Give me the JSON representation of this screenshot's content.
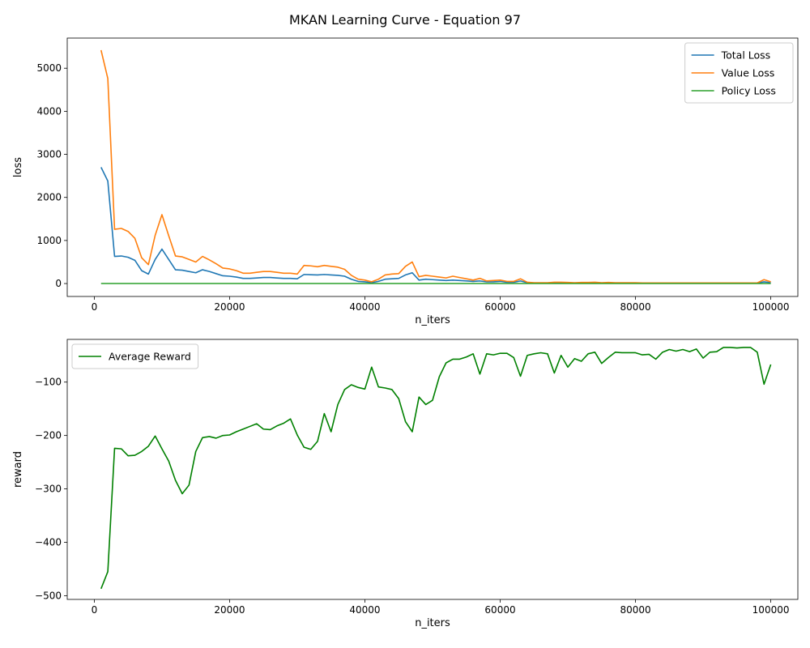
{
  "figure": {
    "title": "MKAN Learning Curve - Equation 97"
  },
  "chart_data": [
    {
      "type": "line",
      "title": "",
      "xlabel": "n_iters",
      "ylabel": "loss",
      "xlim": [
        -4000,
        104000
      ],
      "ylim": [
        -300,
        5700
      ],
      "xticks": [
        0,
        20000,
        40000,
        60000,
        80000,
        100000
      ],
      "xtick_labels": [
        "0",
        "20000",
        "40000",
        "60000",
        "80000",
        "100000"
      ],
      "yticks": [
        0,
        1000,
        2000,
        3000,
        4000,
        5000
      ],
      "ytick_labels": [
        "0",
        "1000",
        "2000",
        "3000",
        "4000",
        "5000"
      ],
      "grid": false,
      "legend_position": "top-right",
      "x": [
        1000,
        2000,
        3000,
        4000,
        5000,
        6000,
        7000,
        8000,
        9000,
        10000,
        11000,
        12000,
        13000,
        14000,
        15000,
        16000,
        17000,
        18000,
        19000,
        20000,
        21000,
        22000,
        23000,
        24000,
        25000,
        26000,
        27000,
        28000,
        29000,
        30000,
        31000,
        32000,
        33000,
        34000,
        35000,
        36000,
        37000,
        38000,
        39000,
        40000,
        41000,
        42000,
        43000,
        44000,
        45000,
        46000,
        47000,
        48000,
        49000,
        50000,
        51000,
        52000,
        53000,
        54000,
        55000,
        56000,
        57000,
        58000,
        59000,
        60000,
        61000,
        62000,
        63000,
        64000,
        65000,
        66000,
        67000,
        68000,
        69000,
        70000,
        71000,
        72000,
        73000,
        74000,
        75000,
        76000,
        77000,
        78000,
        79000,
        80000,
        81000,
        82000,
        83000,
        84000,
        85000,
        86000,
        87000,
        88000,
        89000,
        90000,
        91000,
        92000,
        93000,
        94000,
        95000,
        96000,
        97000,
        98000,
        99000,
        100000
      ],
      "series": [
        {
          "name": "Total Loss",
          "color": "#1f77b4",
          "values": [
            2700,
            2380,
            630,
            640,
            610,
            540,
            300,
            220,
            560,
            800,
            560,
            320,
            310,
            280,
            250,
            320,
            280,
            230,
            180,
            170,
            150,
            120,
            120,
            130,
            140,
            140,
            130,
            120,
            120,
            110,
            210,
            205,
            200,
            210,
            200,
            190,
            170,
            100,
            50,
            40,
            20,
            50,
            100,
            110,
            120,
            200,
            250,
            80,
            100,
            90,
            80,
            70,
            80,
            70,
            60,
            50,
            60,
            40,
            40,
            50,
            30,
            30,
            60,
            20,
            15,
            15,
            15,
            20,
            20,
            15,
            15,
            15,
            15,
            20,
            15,
            15,
            15,
            15,
            15,
            15,
            10,
            10,
            10,
            10,
            10,
            10,
            10,
            10,
            10,
            10,
            10,
            10,
            10,
            10,
            10,
            10,
            10,
            10,
            40,
            20
          ]
        },
        {
          "name": "Value Loss",
          "color": "#ff7f0e",
          "values": [
            5420,
            4760,
            1260,
            1280,
            1210,
            1050,
            600,
            440,
            1120,
            1600,
            1110,
            640,
            620,
            560,
            500,
            630,
            550,
            460,
            360,
            340,
            300,
            240,
            240,
            260,
            280,
            280,
            260,
            240,
            240,
            220,
            420,
            410,
            390,
            420,
            400,
            380,
            330,
            190,
            100,
            80,
            40,
            100,
            200,
            220,
            230,
            400,
            500,
            160,
            190,
            170,
            150,
            130,
            170,
            140,
            110,
            80,
            120,
            60,
            70,
            80,
            50,
            50,
            110,
            30,
            20,
            20,
            20,
            30,
            30,
            25,
            20,
            25,
            25,
            30,
            20,
            25,
            20,
            20,
            20,
            20,
            15,
            15,
            15,
            15,
            15,
            15,
            15,
            15,
            15,
            15,
            15,
            15,
            15,
            15,
            15,
            15,
            15,
            15,
            90,
            40
          ]
        },
        {
          "name": "Policy Loss",
          "color": "#2ca02c",
          "values": [
            1,
            1,
            1,
            1,
            1,
            1,
            1,
            1,
            1,
            1,
            1,
            1,
            1,
            1,
            1,
            1,
            1,
            1,
            1,
            1,
            1,
            1,
            1,
            1,
            1,
            1,
            1,
            1,
            1,
            1,
            1,
            1,
            1,
            1,
            1,
            1,
            1,
            1,
            1,
            1,
            1,
            1,
            1,
            1,
            1,
            1,
            1,
            1,
            1,
            1,
            1,
            1,
            1,
            1,
            1,
            1,
            1,
            1,
            1,
            1,
            1,
            1,
            1,
            1,
            1,
            1,
            1,
            1,
            1,
            1,
            1,
            1,
            1,
            1,
            1,
            1,
            1,
            1,
            1,
            1,
            1,
            1,
            1,
            1,
            1,
            1,
            1,
            1,
            1,
            1,
            1,
            1,
            1,
            1,
            1,
            1,
            1,
            1,
            1,
            1
          ]
        }
      ]
    },
    {
      "type": "line",
      "title": "",
      "xlabel": "n_iters",
      "ylabel": "reward",
      "xlim": [
        -4000,
        104000
      ],
      "ylim": [
        -507,
        -20
      ],
      "xticks": [
        0,
        20000,
        40000,
        60000,
        80000,
        100000
      ],
      "xtick_labels": [
        "0",
        "20000",
        "40000",
        "60000",
        "80000",
        "100000"
      ],
      "yticks": [
        -500,
        -400,
        -300,
        -200,
        -100
      ],
      "ytick_labels": [
        "−500",
        "−400",
        "−300",
        "−200",
        "−100"
      ],
      "grid": false,
      "legend_position": "top-left",
      "x": [
        1000,
        2000,
        3000,
        4000,
        5000,
        6000,
        7000,
        8000,
        9000,
        10000,
        11000,
        12000,
        13000,
        14000,
        15000,
        16000,
        17000,
        18000,
        19000,
        20000,
        21000,
        22000,
        23000,
        24000,
        25000,
        26000,
        27000,
        28000,
        29000,
        30000,
        31000,
        32000,
        33000,
        34000,
        35000,
        36000,
        37000,
        38000,
        39000,
        40000,
        41000,
        42000,
        43000,
        44000,
        45000,
        46000,
        47000,
        48000,
        49000,
        50000,
        51000,
        52000,
        53000,
        54000,
        55000,
        56000,
        57000,
        58000,
        59000,
        60000,
        61000,
        62000,
        63000,
        64000,
        65000,
        66000,
        67000,
        68000,
        69000,
        70000,
        71000,
        72000,
        73000,
        74000,
        75000,
        76000,
        77000,
        78000,
        79000,
        80000,
        81000,
        82000,
        83000,
        84000,
        85000,
        86000,
        87000,
        88000,
        89000,
        90000,
        91000,
        92000,
        93000,
        94000,
        95000,
        96000,
        97000,
        98000,
        99000,
        100000
      ],
      "series": [
        {
          "name": "Average Reward",
          "color": "#008000",
          "values": [
            -487,
            -455,
            -224,
            -225,
            -238,
            -237,
            -230,
            -220,
            -201,
            -225,
            -248,
            -284,
            -309,
            -293,
            -230,
            -204,
            -202,
            -205,
            -200,
            -199,
            -193,
            -188,
            -183,
            -178,
            -188,
            -189,
            -182,
            -177,
            -169,
            -199,
            -222,
            -226,
            -211,
            -159,
            -193,
            -142,
            -114,
            -105,
            -110,
            -113,
            -72,
            -109,
            -111,
            -114,
            -131,
            -174,
            -193,
            -128,
            -142,
            -134,
            -90,
            -64,
            -57,
            -57,
            -53,
            -47,
            -85,
            -47,
            -49,
            -46,
            -46,
            -54,
            -89,
            -50,
            -47,
            -45,
            -47,
            -83,
            -50,
            -72,
            -56,
            -61,
            -47,
            -44,
            -65,
            -54,
            -44,
            -45,
            -45,
            -45,
            -49,
            -48,
            -57,
            -44,
            -39,
            -42,
            -39,
            -43,
            -38,
            -55,
            -44,
            -43,
            -35,
            -35,
            -36,
            -35,
            -35,
            -44,
            -104,
            -67
          ]
        }
      ]
    }
  ]
}
